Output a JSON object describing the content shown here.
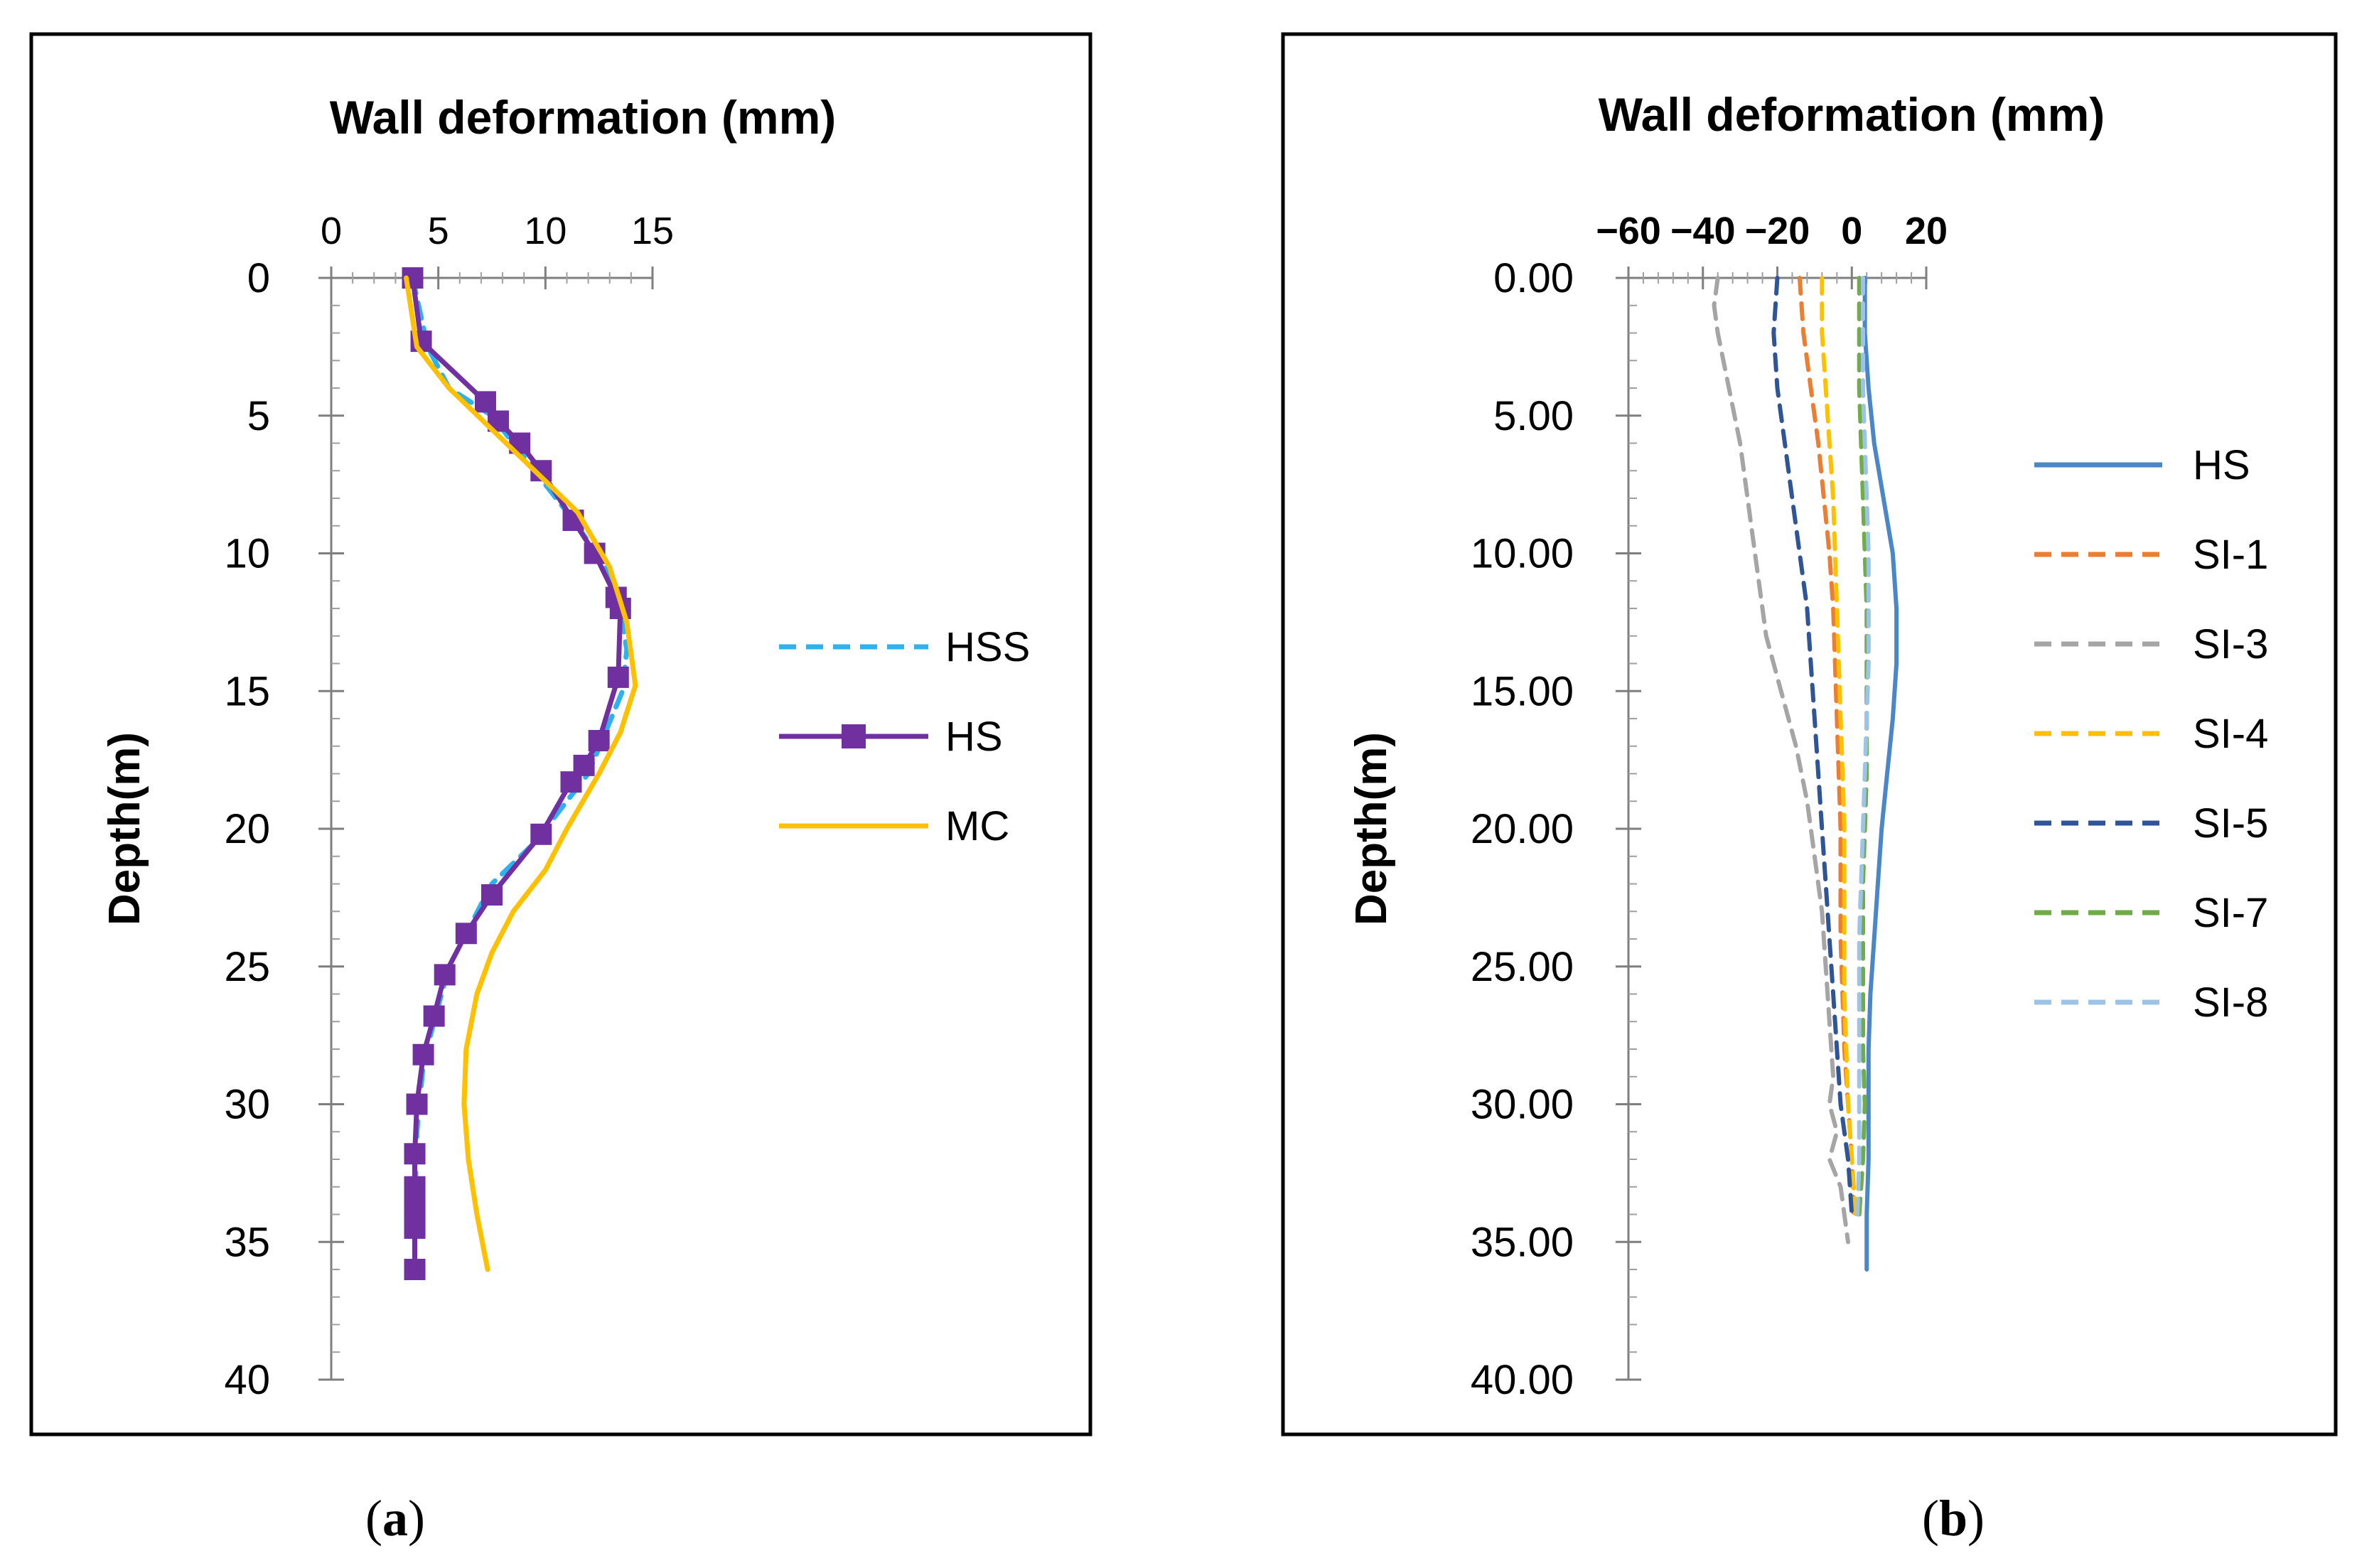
{
  "chart_data": [
    {
      "type": "line",
      "panel_label": "a",
      "title": "Wall deformation  (mm)",
      "xlabel": "",
      "ylabel": "Depth(m)",
      "x_axis_position": "top",
      "y_axis_inverted": true,
      "xlim": [
        0,
        15
      ],
      "ylim": [
        0,
        40
      ],
      "xticks": [
        "0",
        "5",
        "10",
        "15"
      ],
      "yticks": [
        "0",
        "5",
        "10",
        "15",
        "20",
        "25",
        "30",
        "35",
        "40"
      ],
      "legend_position": "right",
      "series": [
        {
          "name": "HSS",
          "color": "#2eb2ef",
          "style": "dashed",
          "marker": "none",
          "points": [
            [
              3.8,
              0
            ],
            [
              4.5,
              2.5
            ],
            [
              5.5,
              4
            ],
            [
              7.5,
              5
            ],
            [
              8.5,
              6
            ],
            [
              10,
              7.5
            ],
            [
              11.5,
              9
            ],
            [
              12.8,
              10.5
            ],
            [
              13.5,
              12
            ],
            [
              13.8,
              13.5
            ],
            [
              13.6,
              15
            ],
            [
              12.8,
              16.5
            ],
            [
              12,
              18
            ],
            [
              10.5,
              19.5
            ],
            [
              9.5,
              20.5
            ],
            [
              7.5,
              22
            ],
            [
              6.5,
              23.5
            ],
            [
              5.5,
              25
            ],
            [
              4.8,
              27
            ],
            [
              4.3,
              28.5
            ],
            [
              4,
              31
            ],
            [
              3.9,
              34
            ],
            [
              3.9,
              36
            ]
          ]
        },
        {
          "name": "HS",
          "color": "#7030a0",
          "style": "solid",
          "marker": "square",
          "points": [
            [
              3.8,
              0
            ],
            [
              4.2,
              2.3
            ],
            [
              7.2,
              4.5
            ],
            [
              7.8,
              5.2
            ],
            [
              8.8,
              6
            ],
            [
              9.8,
              7
            ],
            [
              11.3,
              8.8
            ],
            [
              12.3,
              10
            ],
            [
              13.3,
              11.6
            ],
            [
              13.5,
              12
            ],
            [
              13.4,
              14.5
            ],
            [
              12.5,
              16.8
            ],
            [
              11.8,
              17.7
            ],
            [
              11.2,
              18.3
            ],
            [
              9.8,
              20.2
            ],
            [
              7.5,
              22.4
            ],
            [
              6.3,
              23.8
            ],
            [
              5.3,
              25.3
            ],
            [
              4.8,
              26.8
            ],
            [
              4.3,
              28.2
            ],
            [
              4,
              30
            ],
            [
              3.9,
              31.8
            ],
            [
              3.9,
              33
            ],
            [
              3.9,
              33.5
            ],
            [
              3.9,
              34
            ],
            [
              3.9,
              34.5
            ],
            [
              3.9,
              36
            ]
          ]
        },
        {
          "name": "MC",
          "color": "#ffc000",
          "style": "solid",
          "marker": "none",
          "points": [
            [
              3.5,
              0
            ],
            [
              4,
              2.5
            ],
            [
              5.5,
              4
            ],
            [
              7.5,
              5.5
            ],
            [
              9.5,
              7
            ],
            [
              11.5,
              8.5
            ],
            [
              13,
              10.5
            ],
            [
              13.8,
              12.5
            ],
            [
              14.2,
              14.8
            ],
            [
              13.5,
              16.5
            ],
            [
              12.5,
              18
            ],
            [
              11,
              20
            ],
            [
              10,
              21.5
            ],
            [
              8.5,
              23
            ],
            [
              7.5,
              24.5
            ],
            [
              6.8,
              26
            ],
            [
              6.3,
              28
            ],
            [
              6.2,
              30
            ],
            [
              6.4,
              32
            ],
            [
              6.8,
              34
            ],
            [
              7.3,
              36
            ]
          ]
        }
      ]
    },
    {
      "type": "line",
      "panel_label": "b",
      "title": "Wall deformation  (mm)",
      "xlabel": "",
      "ylabel": "Depth(m)",
      "x_axis_position": "top",
      "y_axis_inverted": true,
      "xlim": [
        -60,
        20
      ],
      "ylim": [
        0,
        40
      ],
      "xticks": [
        "−60",
        "−40",
        "−20",
        "0",
        "20"
      ],
      "yticks": [
        "0.00",
        "5.00",
        "10.00",
        "15.00",
        "20.00",
        "25.00",
        "30.00",
        "35.00",
        "40.00"
      ],
      "legend_position": "right",
      "series": [
        {
          "name": "HS",
          "color": "#4a86c8",
          "style": "solid",
          "points": [
            [
              3.5,
              0
            ],
            [
              3.5,
              2
            ],
            [
              4.5,
              4
            ],
            [
              6,
              6
            ],
            [
              8.5,
              8
            ],
            [
              11,
              10
            ],
            [
              12,
              12
            ],
            [
              12,
              14
            ],
            [
              11,
              16
            ],
            [
              9.5,
              18
            ],
            [
              8,
              20
            ],
            [
              7,
              22
            ],
            [
              6,
              24
            ],
            [
              5,
              26
            ],
            [
              4.5,
              28
            ],
            [
              4.5,
              30
            ],
            [
              4.5,
              32
            ],
            [
              4,
              34
            ],
            [
              4,
              36
            ]
          ]
        },
        {
          "name": "SI-1",
          "color": "#ed7d31",
          "style": "dashed",
          "points": [
            [
              -14,
              0
            ],
            [
              -13,
              2
            ],
            [
              -11,
              4
            ],
            [
              -9,
              6
            ],
            [
              -7.5,
              8
            ],
            [
              -6,
              10
            ],
            [
              -5,
              12
            ],
            [
              -4.5,
              14
            ],
            [
              -4,
              16
            ],
            [
              -3.5,
              18
            ],
            [
              -3,
              20
            ],
            [
              -3,
              22
            ],
            [
              -3,
              24
            ],
            [
              -2.5,
              26
            ],
            [
              -2,
              28
            ],
            [
              -1,
              30
            ],
            [
              0,
              32
            ],
            [
              0.5,
              34
            ]
          ]
        },
        {
          "name": "SI-3",
          "color": "#a5a5a5",
          "style": "dashed",
          "points": [
            [
              -36,
              0
            ],
            [
              -37,
              1
            ],
            [
              -36,
              2
            ],
            [
              -33,
              4
            ],
            [
              -30,
              6
            ],
            [
              -28,
              8
            ],
            [
              -27,
              9
            ],
            [
              -25,
              11
            ],
            [
              -23,
              13
            ],
            [
              -19,
              15
            ],
            [
              -15,
              17
            ],
            [
              -12,
              19
            ],
            [
              -10,
              21
            ],
            [
              -8,
              23
            ],
            [
              -7,
              25
            ],
            [
              -6,
              27
            ],
            [
              -5,
              29
            ],
            [
              -6,
              30
            ],
            [
              -4,
              31
            ],
            [
              -6,
              32
            ],
            [
              -3,
              33
            ],
            [
              -1,
              35
            ]
          ]
        },
        {
          "name": "SI-4",
          "color": "#ffc000",
          "style": "dashed",
          "points": [
            [
              -8,
              0
            ],
            [
              -8,
              2
            ],
            [
              -7,
              4
            ],
            [
              -6,
              6
            ],
            [
              -5,
              8
            ],
            [
              -4.5,
              10
            ],
            [
              -4,
              12
            ],
            [
              -3.5,
              14
            ],
            [
              -3,
              16
            ],
            [
              -2.5,
              18
            ],
            [
              -2,
              20
            ],
            [
              -2,
              22
            ],
            [
              -2,
              24
            ],
            [
              -2,
              26
            ],
            [
              -1.5,
              28
            ],
            [
              -1,
              30
            ],
            [
              0,
              32
            ],
            [
              1,
              34
            ]
          ]
        },
        {
          "name": "SI-5",
          "color": "#2f5597",
          "style": "dashed",
          "points": [
            [
              -20,
              0
            ],
            [
              -21,
              2
            ],
            [
              -20,
              4
            ],
            [
              -18,
              6
            ],
            [
              -16,
              8
            ],
            [
              -14,
              10
            ],
            [
              -12,
              12
            ],
            [
              -11,
              14
            ],
            [
              -10,
              16
            ],
            [
              -9,
              18
            ],
            [
              -8,
              20
            ],
            [
              -7,
              22
            ],
            [
              -6,
              24
            ],
            [
              -5,
              26
            ],
            [
              -4,
              28
            ],
            [
              -3,
              30
            ],
            [
              -1,
              32
            ],
            [
              0,
              34
            ]
          ]
        },
        {
          "name": "SI-7",
          "color": "#70ad47",
          "style": "dashed",
          "points": [
            [
              2,
              0
            ],
            [
              2,
              2
            ],
            [
              2,
              4
            ],
            [
              2.5,
              6
            ],
            [
              3,
              8
            ],
            [
              3.5,
              10
            ],
            [
              4,
              12
            ],
            [
              4,
              14
            ],
            [
              4,
              16
            ],
            [
              4,
              18
            ],
            [
              3.5,
              20
            ],
            [
              3,
              22
            ],
            [
              3,
              24
            ],
            [
              3,
              26
            ],
            [
              3,
              28
            ],
            [
              3.5,
              30
            ],
            [
              3,
              32
            ],
            [
              2,
              34
            ]
          ]
        },
        {
          "name": "SI-8",
          "color": "#9dc3e6",
          "style": "dashed",
          "points": [
            [
              3,
              0
            ],
            [
              3,
              2
            ],
            [
              3,
              4
            ],
            [
              3.5,
              6
            ],
            [
              4,
              8
            ],
            [
              4.5,
              10
            ],
            [
              4.5,
              12
            ],
            [
              4.5,
              14
            ],
            [
              4,
              16
            ],
            [
              3.5,
              18
            ],
            [
              3,
              20
            ],
            [
              2.5,
              22
            ],
            [
              2,
              24
            ],
            [
              2,
              26
            ],
            [
              2,
              28
            ],
            [
              2,
              30
            ],
            [
              2,
              32
            ],
            [
              1.5,
              34
            ]
          ]
        }
      ]
    }
  ],
  "captions": [
    "a",
    "b"
  ]
}
